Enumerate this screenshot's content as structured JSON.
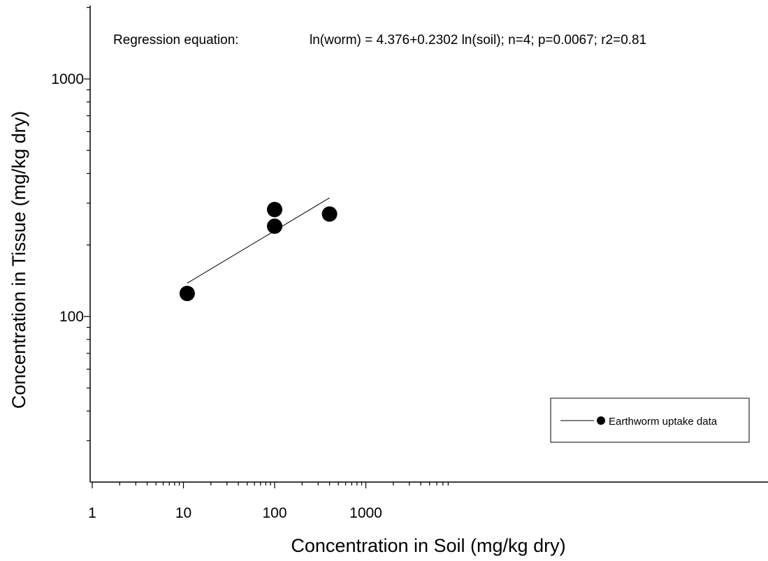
{
  "chart_data": {
    "type": "scatter",
    "annotation": {
      "label": "Regression equation:",
      "equation": "ln(worm) = 4.376+0.2302 ln(soil); n=4; p=0.0067; r2=0.81"
    },
    "xlabel": "Concentration in Soil (mg/kg dry)",
    "ylabel": "Concentration in Tissue (mg/kg dry)",
    "x_scale": "log",
    "y_scale": "log",
    "xlim": [
      1,
      8000
    ],
    "ylim": [
      20,
      2000
    ],
    "x_ticks": [
      1,
      10,
      100,
      1000
    ],
    "x_tick_labels": [
      "1",
      "10",
      "100",
      "1000"
    ],
    "y_ticks": [
      100,
      1000
    ],
    "y_tick_labels": [
      "100",
      "1000"
    ],
    "series": [
      {
        "name": "Earthworm uptake data",
        "x": [
          11,
          100,
          100,
          400
        ],
        "y": [
          125,
          282,
          240,
          270
        ]
      }
    ],
    "regression_line": {
      "intercept": 4.376,
      "slope": 0.2302,
      "x_range": [
        11,
        400
      ]
    },
    "legend": {
      "position": "bottom-right",
      "label": "Earthworm uptake data"
    },
    "grid": false
  }
}
